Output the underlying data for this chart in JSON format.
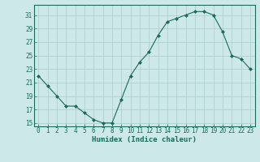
{
  "x": [
    0,
    1,
    2,
    3,
    4,
    5,
    6,
    7,
    8,
    9,
    10,
    11,
    12,
    13,
    14,
    15,
    16,
    17,
    18,
    19,
    20,
    21,
    22,
    23
  ],
  "y": [
    22,
    20.5,
    19,
    17.5,
    17.5,
    16.5,
    15.5,
    15,
    15,
    18.5,
    22,
    24,
    25.5,
    28,
    30,
    30.5,
    31,
    31.5,
    31.5,
    31,
    28.5,
    25,
    24.5,
    23
  ],
  "line_color": "#1a6b5a",
  "marker": "D",
  "marker_size": 2,
  "bg_color": "#cce8e8",
  "grid_color": "#aacccc",
  "xlabel": "Humidex (Indice chaleur)",
  "xlim": [
    -0.5,
    23.5
  ],
  "ylim": [
    14.5,
    32.5
  ],
  "yticks": [
    15,
    17,
    19,
    21,
    23,
    25,
    27,
    29,
    31
  ],
  "xticks": [
    0,
    1,
    2,
    3,
    4,
    5,
    6,
    7,
    8,
    9,
    10,
    11,
    12,
    13,
    14,
    15,
    16,
    17,
    18,
    19,
    20,
    21,
    22,
    23
  ],
  "tick_color": "#1a6b5a",
  "label_color": "#1a6b5a",
  "axis_color": "#1a6b5a",
  "tick_fontsize": 5.5,
  "xlabel_fontsize": 6.5
}
